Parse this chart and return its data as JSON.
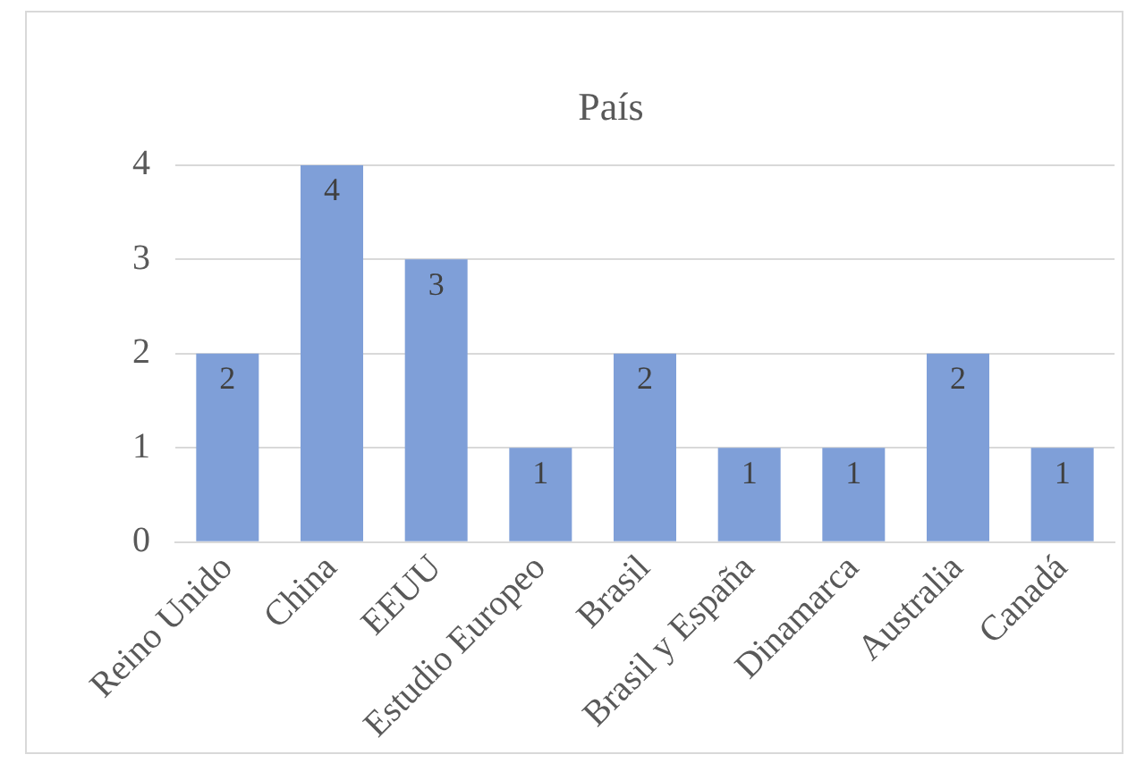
{
  "chart_data": {
    "type": "bar",
    "title": "País",
    "categories": [
      "Reino Unido",
      "China",
      "EEUU",
      "Estudio Europeo",
      "Brasil",
      "Brasil y España",
      "Dinamarca",
      "Australia",
      "Canadá"
    ],
    "values": [
      2,
      4,
      3,
      1,
      2,
      1,
      1,
      2,
      1
    ],
    "color": "#7f9fd8",
    "ylim": [
      0,
      4
    ],
    "yticks": [
      0,
      1,
      2,
      3,
      4
    ],
    "grid": "y",
    "data_labels": true
  }
}
